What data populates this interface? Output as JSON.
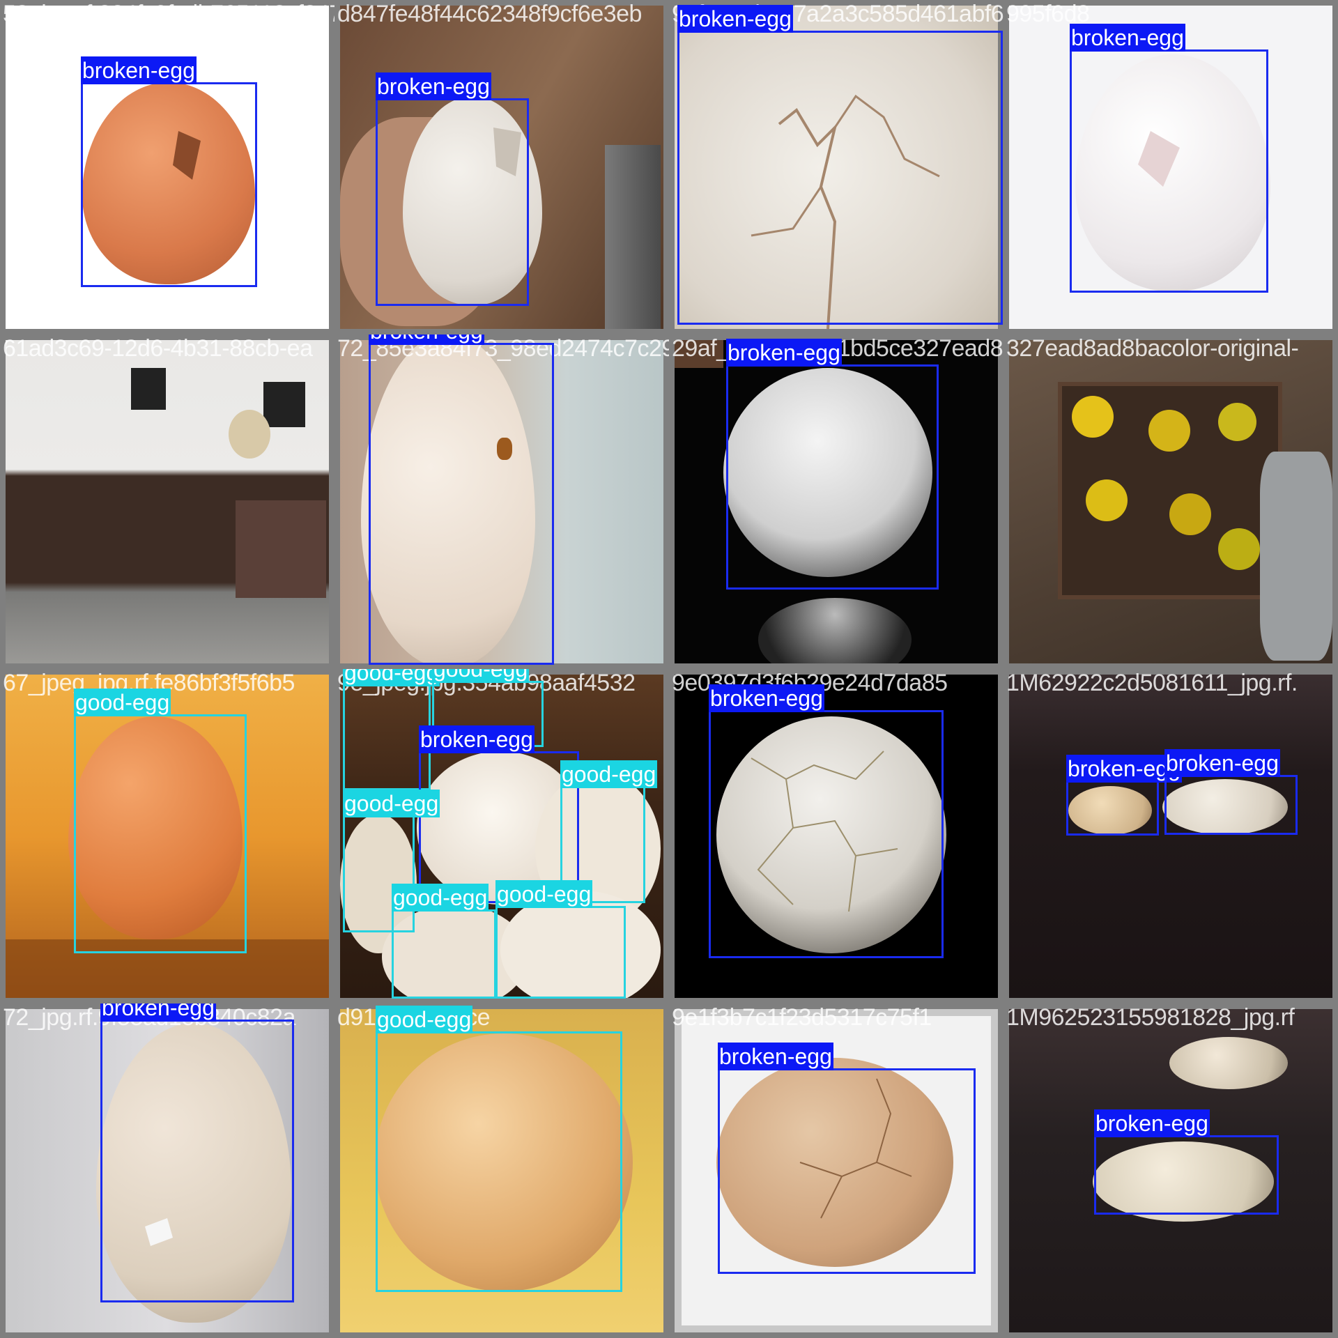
{
  "labels": {
    "broken": "broken-egg",
    "good": "good-egg"
  },
  "colors": {
    "broken_box": "#1a2bf0",
    "good_box": "#26d3e0",
    "grid_bg": "#7f7f7f"
  },
  "tiles": [
    {
      "filename": "58_jpg.rf.224fc0fcdb765118cf847fe48f44c6"
    },
    {
      "filename": "d847fe48f44c62348f9cf6e3eb"
    },
    {
      "filename": "99fa724b367a2a3c585d461abf6"
    },
    {
      "filename": "995f6d8"
    },
    {
      "filename": "61ad3c69-12d6-4b31-88cb-ea"
    },
    {
      "filename": "72_85e3a84f73_98ed2474c7c29a"
    },
    {
      "filename": "29af_jpg.rf.e65d1bd5ce327ead8ad"
    },
    {
      "filename": "327ead8ad8bacolor-original-"
    },
    {
      "filename": "67_jpeg_jpg.rf.fe86bf3f5f6b5"
    },
    {
      "filename": "9e_jpeg.jpg.354ab98aaf4532"
    },
    {
      "filename": "9e0397d3f6b29e24d7da85"
    },
    {
      "filename": "1M62922c2d5081611_jpg.rf."
    },
    {
      "filename": "72_jpg.rf.9f58ad1eb840c82a"
    },
    {
      "filename": "d91ae72513ce"
    },
    {
      "filename": "9e1f3b7c1f23d5317c75f1"
    },
    {
      "filename": "1M962523155981828_jpg.rf"
    }
  ]
}
